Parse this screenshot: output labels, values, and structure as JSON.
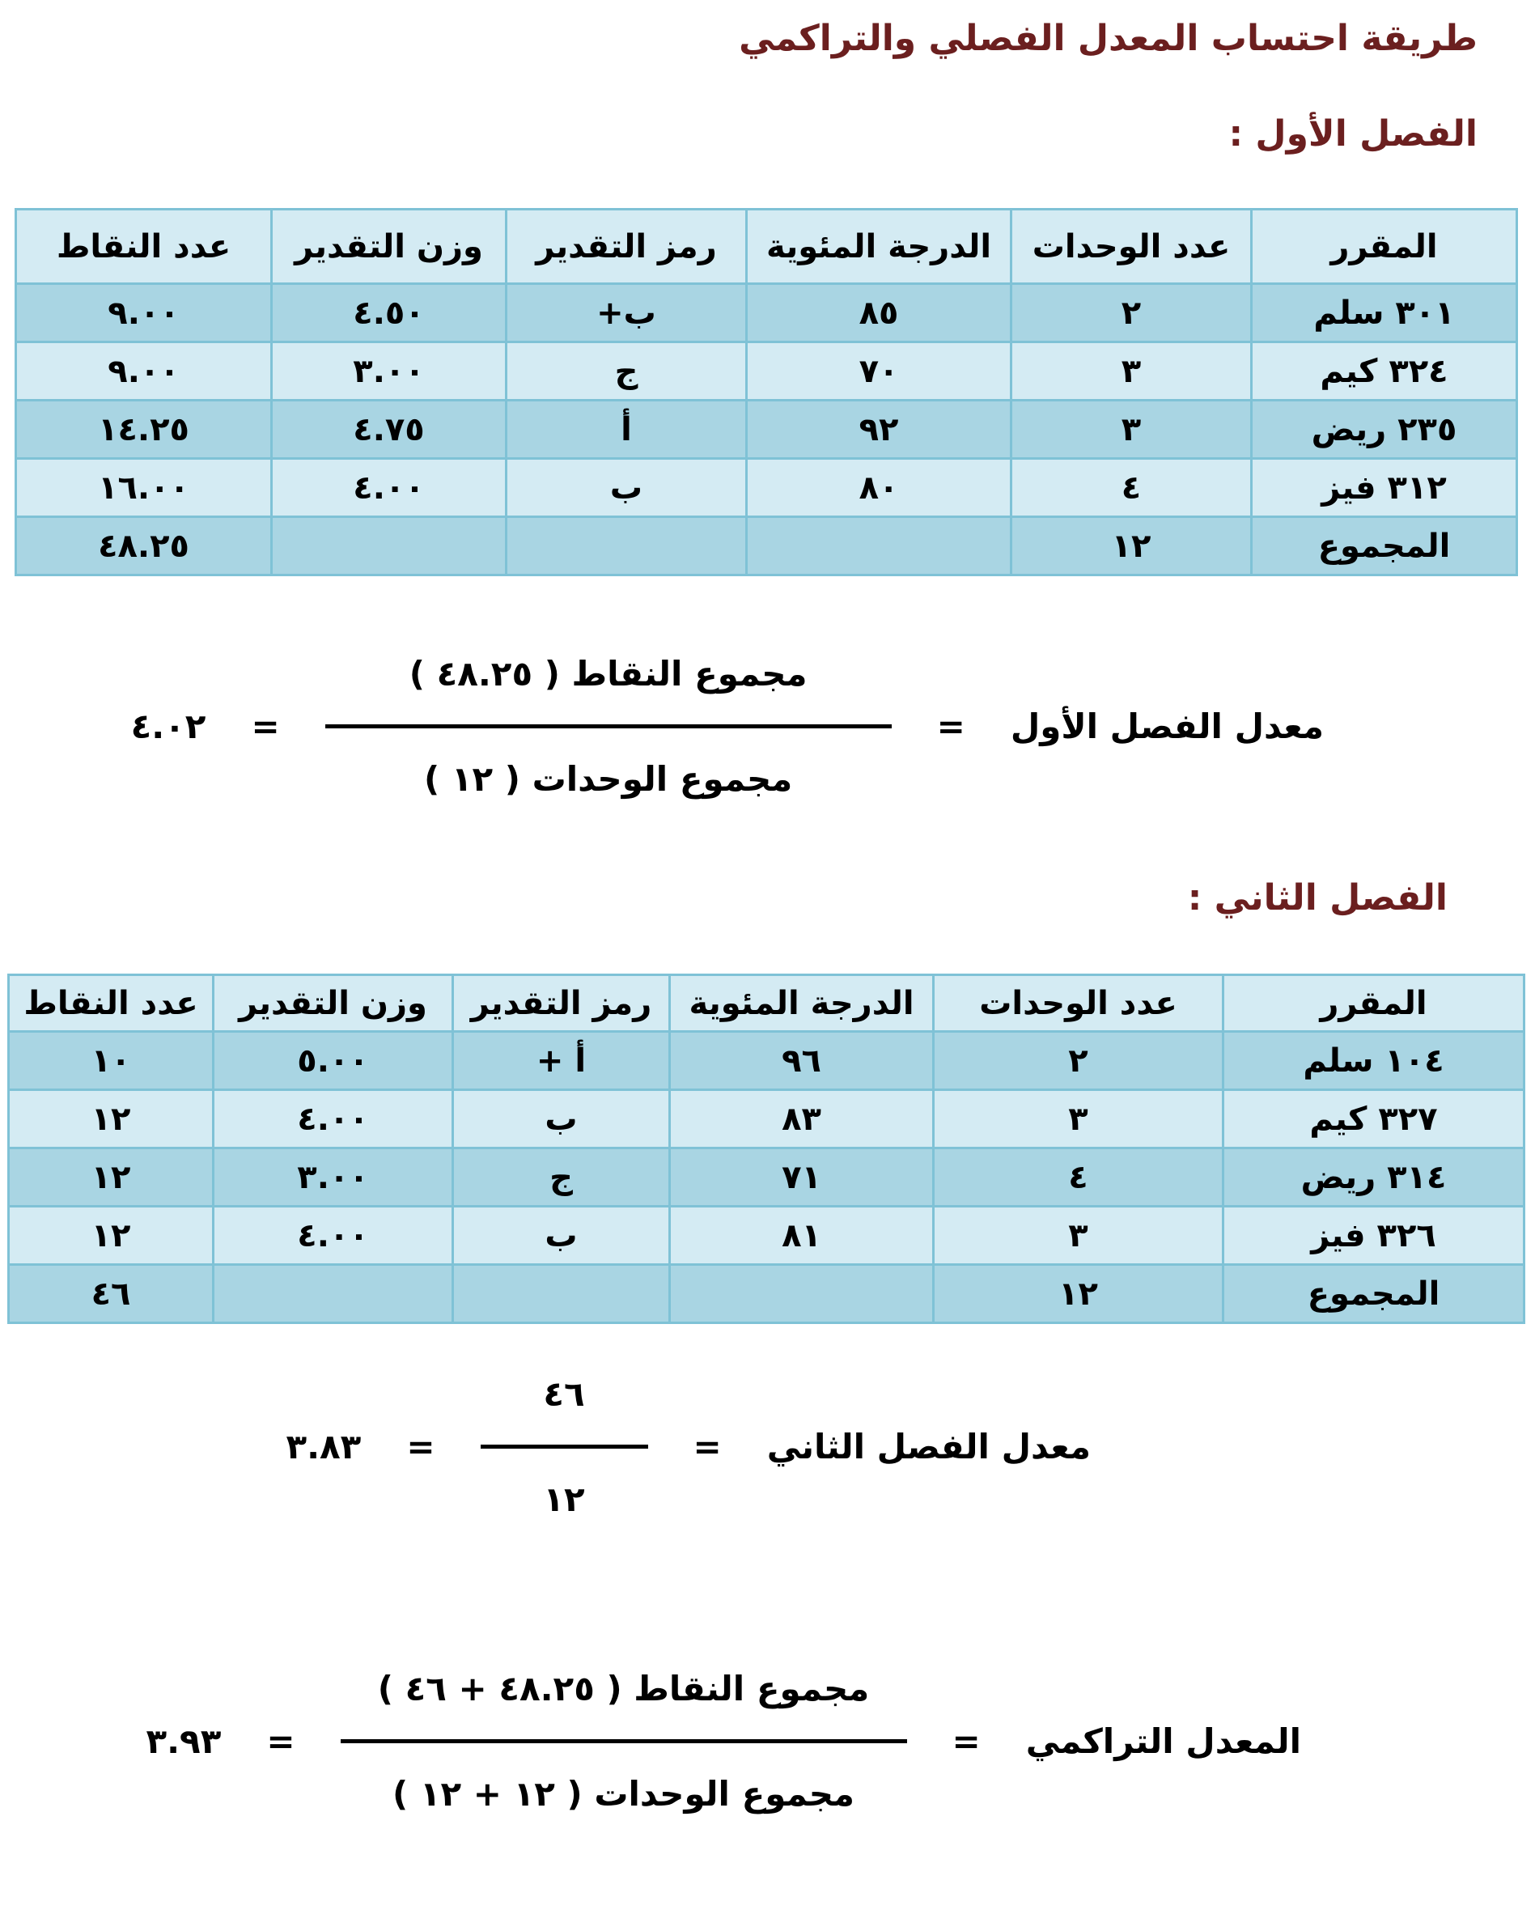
{
  "title": "طريقة احتساب المعدل الفصلي والتراكمي",
  "colors": {
    "title": "#6b1f1f",
    "header_bg": "#d4ebf3",
    "dark_row_bg": "#a9d5e3",
    "border": "#7fc2d6"
  },
  "semester1": {
    "label": "الفصل الأول :",
    "headers": [
      "المقرر",
      "عدد الوحدات",
      "الدرجة المئوية",
      "رمز التقدير",
      "وزن التقدير",
      "عدد النقاط"
    ],
    "rows": [
      [
        "٣٠١ سلم",
        "٢",
        "٨٥",
        "ب+",
        "٤.٥٠",
        "٩.٠٠"
      ],
      [
        "٣٢٤ كيم",
        "٣",
        "٧٠",
        "ج",
        "٣.٠٠",
        "٩.٠٠"
      ],
      [
        "٢٣٥ ريض",
        "٣",
        "٩٢",
        "أ",
        "٤.٧٥",
        "١٤.٢٥"
      ],
      [
        "٣١٢ فيز",
        "٤",
        "٨٠",
        "ب",
        "٤.٠٠",
        "١٦.٠٠"
      ],
      [
        "المجموع",
        "١٢",
        "",
        "",
        "",
        "٤٨.٢٥"
      ]
    ],
    "formula": {
      "label": "معدل الفصل الأول",
      "eq1": "=",
      "numerator": "مجموع النقاط ( ٤٨.٢٥ )",
      "denominator": "مجموع الوحدات ( ١٢ )",
      "eq2": "=",
      "result": "٤.٠٢"
    }
  },
  "semester2": {
    "label": "الفصل الثاني :",
    "headers": [
      "المقرر",
      "عدد الوحدات",
      "الدرجة المئوية",
      "رمز التقدير",
      "وزن التقدير",
      "عدد النقاط"
    ],
    "rows": [
      [
        "١٠٤ سلم",
        "٢",
        "٩٦",
        "أ +",
        "٥.٠٠",
        "١٠"
      ],
      [
        "٣٢٧ كيم",
        "٣",
        "٨٣",
        "ب",
        "٤.٠٠",
        "١٢"
      ],
      [
        "٣١٤ ريض",
        "٤",
        "٧١",
        "ج",
        "٣.٠٠",
        "١٢"
      ],
      [
        "٣٢٦ فيز",
        "٣",
        "٨١",
        "ب",
        "٤.٠٠",
        "١٢"
      ],
      [
        "المجموع",
        "١٢",
        "",
        "",
        "",
        "٤٦"
      ]
    ],
    "formula": {
      "label": "معدل الفصل الثاني",
      "eq1": "=",
      "numerator": "٤٦",
      "denominator": "١٢",
      "eq2": "=",
      "result": "٣.٨٣"
    }
  },
  "cumulative": {
    "label": "المعدل التراكمي",
    "eq1": "=",
    "numerator": "مجموع النقاط ( ٤٨.٢٥ + ٤٦ )",
    "denominator": "مجموع الوحدات ( ١٢ + ١٢ )",
    "eq2": "=",
    "result": "٣.٩٣"
  }
}
